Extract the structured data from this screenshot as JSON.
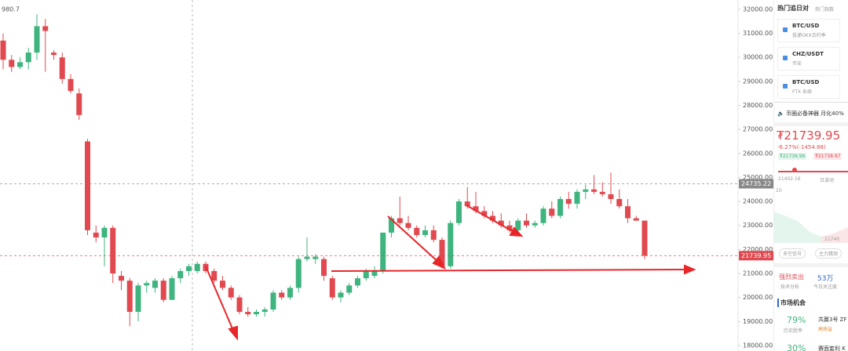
{
  "chart_data": {
    "type": "candlestick",
    "corner_text": "980.7",
    "up_color": "#3fb47f",
    "down_color": "#e0494f",
    "ylim": [
      17770,
      32390
    ],
    "yticks": [
      {
        "value": 32000,
        "label": "32000.00"
      },
      {
        "value": 31000,
        "label": "31000.00"
      },
      {
        "value": 30000,
        "label": "30000.00"
      },
      {
        "value": 29000,
        "label": "29000.00"
      },
      {
        "value": 28000,
        "label": "28000.00"
      },
      {
        "value": 27000,
        "label": "27000.00"
      },
      {
        "value": 26000,
        "label": "26000.00"
      },
      {
        "value": 25000,
        "label": "25000.00"
      },
      {
        "value": 24000,
        "label": "24000.00"
      },
      {
        "value": 23000,
        "label": "23000.00"
      },
      {
        "value": 22000,
        "label": "22000.00"
      },
      {
        "value": 21000,
        "label": "21000.00"
      },
      {
        "value": 20000,
        "label": "20000.00"
      },
      {
        "value": 19000,
        "label": "19000.00"
      },
      {
        "value": 18000,
        "label": "18000.00"
      }
    ],
    "price_lines": [
      {
        "value": 24735.22,
        "label": "24735.22",
        "color": "#888888"
      },
      {
        "value": 21739.95,
        "label": "21739.95",
        "color": "#e0494f"
      }
    ],
    "open": [
      30700,
      29900,
      29600,
      29800,
      30200,
      31300,
      30200,
      30000,
      29100,
      28500,
      26500,
      22700,
      22500,
      22900,
      20900,
      20700,
      19400,
      20500,
      20400,
      20700,
      19900,
      20800,
      21100,
      21100,
      21400,
      21100,
      20700,
      20400,
      20000,
      19400,
      19300,
      19400,
      19500,
      20200,
      20000,
      20400,
      21600,
      21600,
      21600,
      20800,
      20000,
      20200,
      20500,
      20800,
      20900,
      21100,
      22700,
      23300,
      23100,
      22900,
      22600,
      22800,
      22400,
      21300,
      23100,
      24000,
      23800,
      23600,
      23400,
      23200,
      23000,
      22800,
      23200,
      23000,
      23100,
      23700,
      23400,
      24100,
      23900,
      24400,
      24500,
      24400,
      24300,
      24100,
      23800,
      23300,
      23200
    ],
    "high": [
      31000,
      30100,
      30000,
      30400,
      31800,
      31600,
      30300,
      30200,
      29300,
      28700,
      26600,
      23000,
      23000,
      23000,
      21100,
      20800,
      20600,
      20700,
      20800,
      20800,
      20900,
      21200,
      21400,
      21500,
      21500,
      21200,
      20900,
      20500,
      20100,
      19600,
      19500,
      19600,
      20300,
      20300,
      20500,
      21700,
      22500,
      21800,
      21700,
      20900,
      20300,
      20600,
      20900,
      21200,
      21300,
      22700,
      23400,
      24200,
      23400,
      23000,
      23000,
      23000,
      22500,
      23200,
      24100,
      24600,
      24400,
      23800,
      23600,
      23500,
      23200,
      23300,
      23500,
      23200,
      23800,
      24000,
      24200,
      24400,
      24500,
      24700,
      25100,
      24800,
      25200,
      24500,
      24100,
      23400,
      23200
    ],
    "low": [
      29500,
      29400,
      29500,
      29500,
      29900,
      29400,
      29900,
      28900,
      28500,
      27400,
      22600,
      22300,
      21300,
      20600,
      20300,
      18800,
      19000,
      20200,
      20200,
      19800,
      19900,
      20600,
      20900,
      21000,
      21000,
      20600,
      20300,
      19900,
      19300,
      19200,
      19200,
      19200,
      19400,
      19900,
      19900,
      20200,
      21500,
      21400,
      20700,
      19900,
      19800,
      20100,
      20400,
      20700,
      20800,
      21000,
      22500,
      23000,
      22800,
      22500,
      22500,
      22300,
      21200,
      21200,
      23000,
      23700,
      23500,
      23300,
      23100,
      22900,
      22700,
      22600,
      22900,
      22900,
      23000,
      23300,
      23300,
      23700,
      23700,
      24100,
      24300,
      24200,
      23900,
      23700,
      23100,
      23200,
      21600
    ],
    "close": [
      29900,
      29600,
      29800,
      30200,
      31300,
      31100,
      30100,
      29100,
      28600,
      27600,
      22800,
      22500,
      22900,
      21000,
      20700,
      19400,
      20500,
      20600,
      20700,
      19900,
      20800,
      21100,
      21300,
      21400,
      21100,
      20700,
      20400,
      20000,
      19400,
      19300,
      19400,
      19500,
      20200,
      20000,
      20400,
      21600,
      21700,
      21700,
      20900,
      20000,
      20200,
      20500,
      20800,
      21100,
      21100,
      22700,
      23300,
      23100,
      22900,
      22600,
      22800,
      22400,
      21300,
      23100,
      24000,
      23800,
      23600,
      23400,
      23200,
      23000,
      22800,
      23200,
      23000,
      23100,
      23700,
      23400,
      24100,
      23900,
      24400,
      24500,
      24400,
      24300,
      24100,
      23800,
      23300,
      23200,
      21740
    ]
  },
  "sidebar": {
    "title": "热门追日对",
    "subtitle": "热门指数",
    "pairs": [
      {
        "name": "BTC/USD",
        "desc": "投递OKX合约季"
      },
      {
        "name": "CHZ/USDT",
        "desc": "币安"
      },
      {
        "name": "BTC/USD",
        "desc": "FTX 永续"
      }
    ],
    "notice": "币圈必备神器 月化40%",
    "price": "₮21739.95",
    "change": "-6.27%(-1454.88)",
    "bid": "₮21736.96",
    "ask": "₮21738.97",
    "range_low": "21402.16",
    "range_label": "日波动",
    "mini_top": "10",
    "mini_label": "21740",
    "buttons": [
      "多空信号",
      "主力猜测"
    ],
    "signal": "强烈卖出",
    "signal_sub": "技术分析",
    "attention": "53万",
    "attention_sub": "今日关注度",
    "section": "市场机会",
    "rate": "79%",
    "rate_sub": "历史胜率",
    "plan": "共赢3号 ZF",
    "plan_tag": "高收益",
    "rate2": "30%",
    "plan2": "賽面套利 K"
  }
}
